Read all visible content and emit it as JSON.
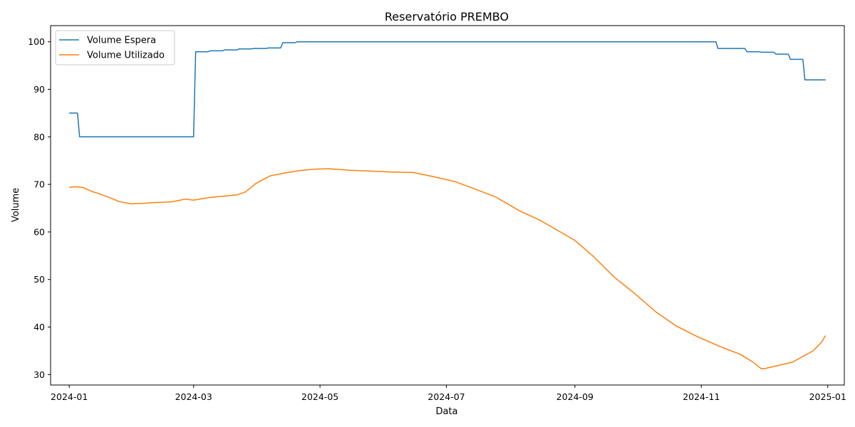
{
  "chart_data": {
    "type": "line",
    "title": "Reservatório PREMBO",
    "xlabel": "Data",
    "ylabel": "Volume",
    "xlim": [
      "2023-12-23",
      "2025-01-09"
    ],
    "ylim": [
      27.8,
      103.4
    ],
    "x_ticks": [
      "2024-01-01",
      "2024-03-01",
      "2024-05-01",
      "2024-07-01",
      "2024-09-01",
      "2024-11-01",
      "2025-01-01"
    ],
    "x_tick_labels": [
      "2024-01",
      "2024-03",
      "2024-05",
      "2024-07",
      "2024-09",
      "2024-11",
      "2025-01"
    ],
    "y_ticks": [
      30,
      40,
      50,
      60,
      70,
      80,
      90,
      100
    ],
    "grid": false,
    "legend_position": "top-left",
    "series": [
      {
        "name": "Volume Espera",
        "color": "#1f77b4",
        "x": [
          "2024-01-01",
          "2024-01-05",
          "2024-01-06",
          "2024-03-01",
          "2024-03-02",
          "2024-03-08",
          "2024-03-09",
          "2024-03-15",
          "2024-03-16",
          "2024-03-22",
          "2024-03-23",
          "2024-03-29",
          "2024-03-30",
          "2024-04-05",
          "2024-04-06",
          "2024-04-12",
          "2024-04-13",
          "2024-04-19",
          "2024-04-20",
          "2024-11-08",
          "2024-11-09",
          "2024-11-22",
          "2024-11-23",
          "2024-11-29",
          "2024-11-30",
          "2024-12-06",
          "2024-12-07",
          "2024-12-13",
          "2024-12-14",
          "2024-12-20",
          "2024-12-21",
          "2024-12-31"
        ],
        "y": [
          85,
          85,
          80,
          80,
          97.9,
          97.9,
          98.1,
          98.1,
          98.3,
          98.3,
          98.5,
          98.5,
          98.6,
          98.6,
          98.7,
          98.7,
          99.8,
          99.8,
          100,
          100,
          98.6,
          98.6,
          97.9,
          97.9,
          97.8,
          97.8,
          97.4,
          97.4,
          96.3,
          96.3,
          92,
          92
        ]
      },
      {
        "name": "Volume Utilizado",
        "color": "#ff7f0e",
        "x": [
          "2024-01-01",
          "2024-01-04",
          "2024-01-08",
          "2024-01-12",
          "2024-01-15",
          "2024-01-20",
          "2024-01-25",
          "2024-01-31",
          "2024-02-05",
          "2024-02-12",
          "2024-02-19",
          "2024-02-26",
          "2024-03-01",
          "2024-03-08",
          "2024-03-15",
          "2024-03-22",
          "2024-03-26",
          "2024-03-31",
          "2024-04-07",
          "2024-04-14",
          "2024-04-21",
          "2024-04-28",
          "2024-05-05",
          "2024-05-15",
          "2024-05-25",
          "2024-06-05",
          "2024-06-15",
          "2024-06-25",
          "2024-07-05",
          "2024-07-15",
          "2024-07-25",
          "2024-08-05",
          "2024-08-15",
          "2024-08-25",
          "2024-09-01",
          "2024-09-10",
          "2024-09-20",
          "2024-09-30",
          "2024-10-10",
          "2024-10-20",
          "2024-10-30",
          "2024-11-10",
          "2024-11-20",
          "2024-11-26",
          "2024-11-30",
          "2024-12-02",
          "2024-12-08",
          "2024-12-15",
          "2024-12-20",
          "2024-12-25",
          "2024-12-29",
          "2024-12-31"
        ],
        "y": [
          69.4,
          69.5,
          69.3,
          68.5,
          68.1,
          67.3,
          66.4,
          65.9,
          66.0,
          66.2,
          66.3,
          66.9,
          66.7,
          67.2,
          67.5,
          67.8,
          68.4,
          70.2,
          71.8,
          72.4,
          72.9,
          73.2,
          73.3,
          73.0,
          72.8,
          72.6,
          72.5,
          71.6,
          70.6,
          69.0,
          67.3,
          64.5,
          62.5,
          60.0,
          58.2,
          54.8,
          50.5,
          47.0,
          43.2,
          40.2,
          38.0,
          35.9,
          34.2,
          32.6,
          31.2,
          31.3,
          31.9,
          32.6,
          33.8,
          35.0,
          36.8,
          38.2
        ]
      }
    ]
  }
}
